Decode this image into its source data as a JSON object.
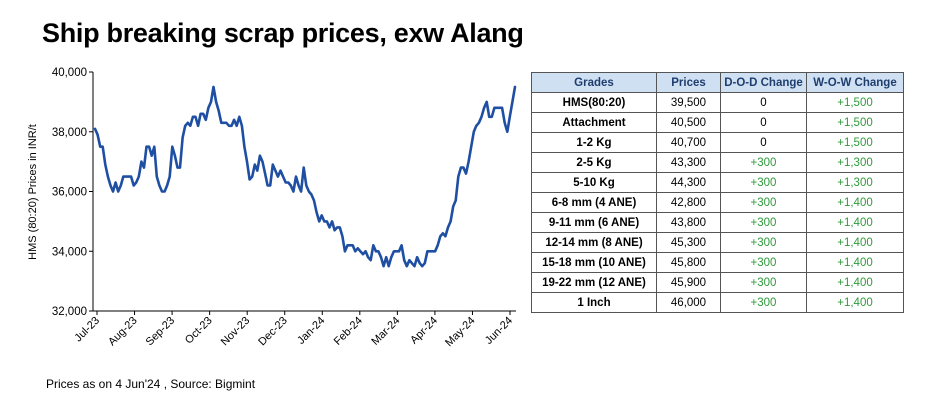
{
  "title": "Ship breaking scrap prices, exw Alang",
  "footer": "Prices as on 4 Jun'24 , Source: Bigmint",
  "colors": {
    "line": "#1f4fa3",
    "header_bg": "#cfe0f3",
    "header_text": "#1f3e6e",
    "positive": "#2e9a3a"
  },
  "chart_data": {
    "type": "line",
    "title": "",
    "xlabel": "",
    "ylabel": "HMS (80:20) Prices in INR/t",
    "ylim": [
      32000,
      40000
    ],
    "yticks": [
      "32,000",
      "34,000",
      "36,000",
      "38,000",
      "40,000"
    ],
    "ytick_values": [
      32000,
      34000,
      36000,
      38000,
      40000
    ],
    "xticks": [
      "Jul-23",
      "Aug-23",
      "Sep-23",
      "Oct-23",
      "Nov-23",
      "Dec-23",
      "Jan-24",
      "Feb-24",
      "Mar-24",
      "Apr-24",
      "May-24",
      "Jun-24"
    ],
    "grid": false,
    "series": [
      {
        "values": [
          38100,
          37900,
          37500,
          37500,
          36900,
          36500,
          36200,
          36000,
          36300,
          36000,
          36200,
          36500,
          36500,
          36500,
          36500,
          36200,
          36300,
          36500,
          37000,
          36800,
          37500,
          37500,
          37200,
          37500,
          36500,
          36200,
          36000,
          36000,
          36200,
          36500,
          37500,
          37200,
          36800,
          36800,
          37800,
          38200,
          38300,
          38200,
          38500,
          38500,
          38200,
          38600,
          38600,
          38400,
          38800,
          39000,
          39500,
          39000,
          38700,
          38300,
          38300,
          38300,
          38200,
          38200,
          38400,
          38200,
          38500,
          38200,
          37500,
          37000,
          36400,
          36500,
          36900,
          36700,
          37200,
          37000,
          36600,
          36200,
          36200,
          36900,
          36700,
          36500,
          36700,
          36500,
          36300,
          36300,
          36200,
          36000,
          36500,
          36200,
          36000,
          36800,
          36200,
          36000,
          35900,
          35700,
          35300,
          35000,
          35200,
          35000,
          35000,
          34800,
          35000,
          34700,
          34800,
          34800,
          34500,
          34000,
          34200,
          34200,
          34200,
          34000,
          34100,
          34000,
          33900,
          34000,
          33800,
          33700,
          34200,
          34000,
          34000,
          33800,
          33500,
          33800,
          33500,
          33800,
          34000,
          34000,
          34000,
          34200,
          33700,
          33500,
          33700,
          33600,
          33500,
          33800,
          33600,
          33500,
          33600,
          34000,
          34000,
          34000,
          34000,
          34200,
          34500,
          34600,
          34500,
          34800,
          35000,
          35500,
          35700,
          36500,
          36800,
          36800,
          36600,
          37000,
          37500,
          38000,
          38200,
          38300,
          38500,
          38800,
          39000,
          38500,
          38500,
          38800,
          38800,
          38800,
          38800,
          38300,
          38000,
          38500,
          39000,
          39500
        ]
      }
    ]
  },
  "table": {
    "headers": [
      "Grades",
      "Prices",
      "D-O-D Change",
      "W-O-W Change"
    ],
    "rows": [
      [
        "HMS(80:20)",
        "39,500",
        "0",
        "+1,500"
      ],
      [
        "Attachment",
        "40,500",
        "0",
        "+1,500"
      ],
      [
        "1-2 Kg",
        "40,700",
        "0",
        "+1,500"
      ],
      [
        "2-5 Kg",
        "43,300",
        "+300",
        "+1,300"
      ],
      [
        "5-10 Kg",
        "44,300",
        "+300",
        "+1,300"
      ],
      [
        "6-8 mm (4 ANE)",
        "42,800",
        "+300",
        "+1,400"
      ],
      [
        "9-11 mm (6 ANE)",
        "43,800",
        "+300",
        "+1,400"
      ],
      [
        "12-14 mm (8 ANE)",
        "45,300",
        "+300",
        "+1,400"
      ],
      [
        "15-18 mm (10 ANE)",
        "45,800",
        "+300",
        "+1,400"
      ],
      [
        "19-22 mm (12 ANE)",
        "45,900",
        "+300",
        "+1,400"
      ],
      [
        "1 Inch",
        "46,000",
        "+300",
        "+1,400"
      ]
    ]
  }
}
